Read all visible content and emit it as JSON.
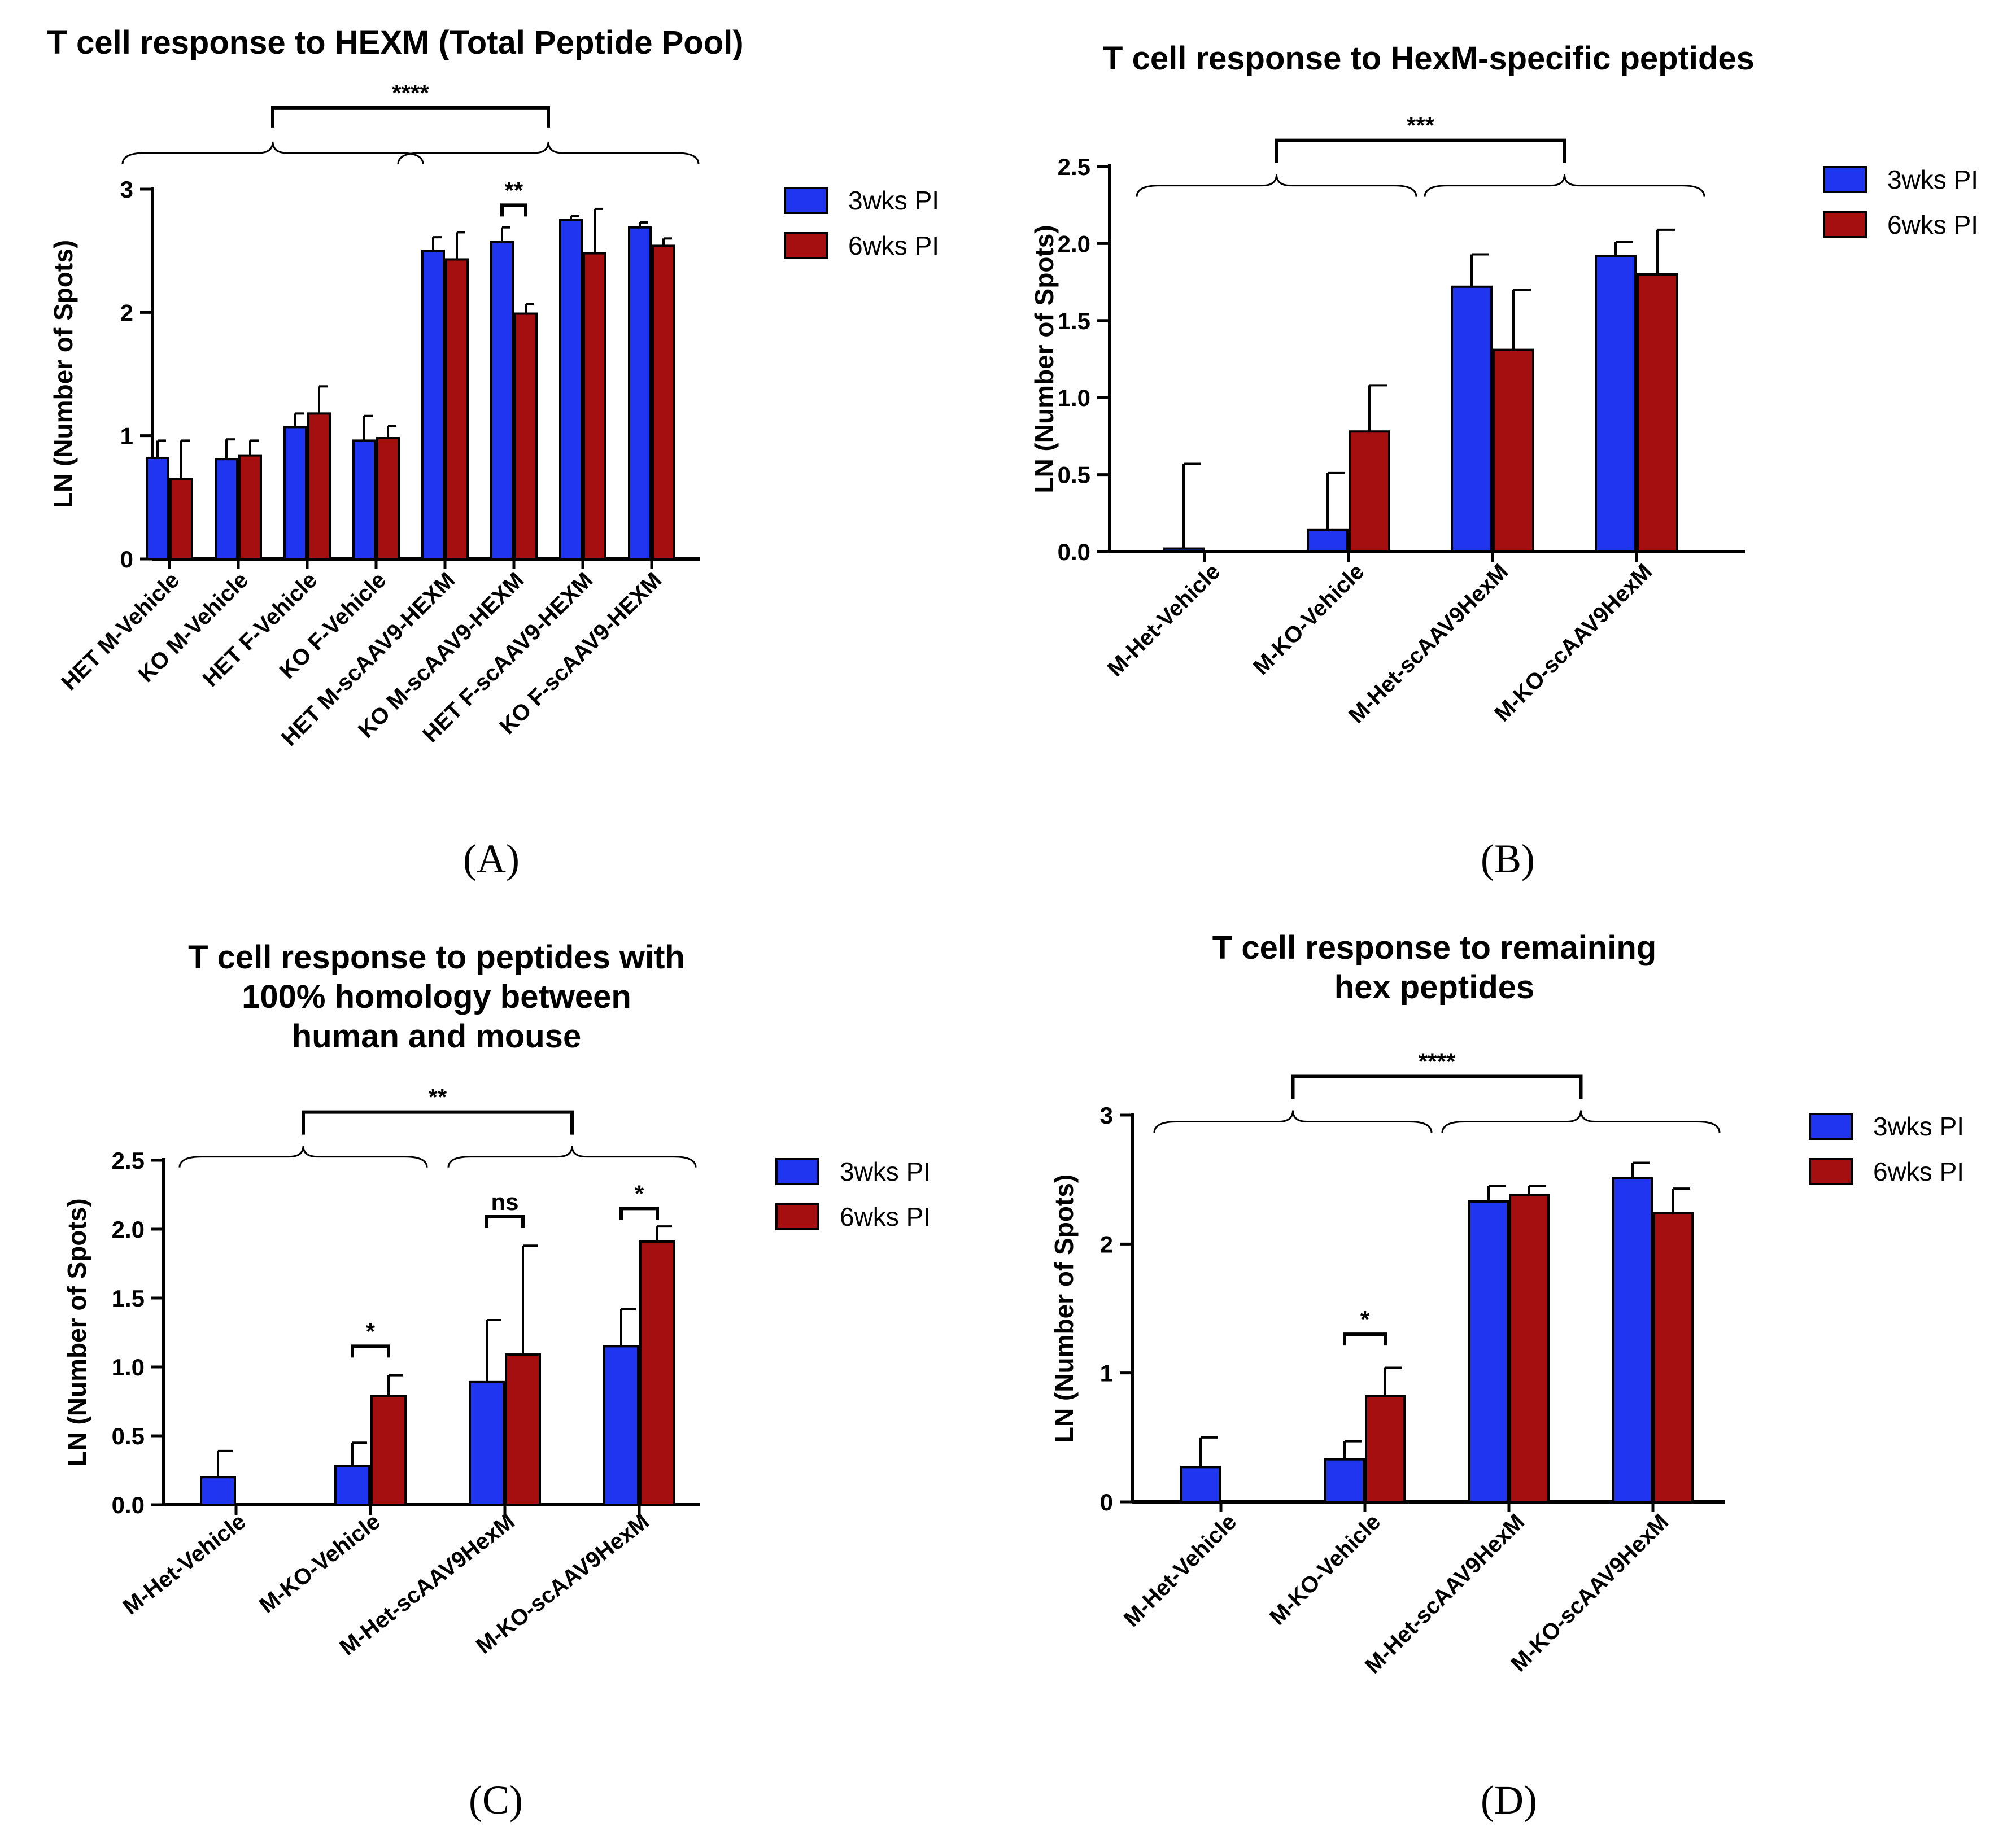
{
  "figure": {
    "colors": {
      "series_3wks": "#1f35f0",
      "series_6wks": "#a50f0f",
      "axis": "#000000"
    }
  },
  "chart_data": [
    {
      "id": "A",
      "panel_label": "(A)",
      "type": "bar",
      "title": [
        "T cell response to HEXM (Total Peptide Pool)"
      ],
      "ylabel": "LN (Number of Spots)",
      "xlabel": "",
      "ylim": [
        0,
        3
      ],
      "yticks": [
        0,
        1,
        2,
        3
      ],
      "ytick_labels": [
        "0",
        "1",
        "2",
        "3"
      ],
      "categories": [
        "HET M-Vehicle",
        "KO M-Vehicle",
        "HET F-Vehicle",
        "KO F-Vehicle",
        "HET M-scAAV9-HEXM",
        "KO M-scAAV9-HEXM",
        "HET F-scAAV9-HEXM",
        "KO F-scAAV9-HEXM"
      ],
      "series": [
        {
          "name": "3wks PI",
          "values": [
            0.82,
            0.81,
            1.07,
            0.96,
            2.5,
            2.57,
            2.75,
            2.69
          ],
          "errors": [
            0.14,
            0.16,
            0.11,
            0.2,
            0.11,
            0.12,
            0.03,
            0.04
          ]
        },
        {
          "name": "6wks PI",
          "values": [
            0.65,
            0.84,
            1.18,
            0.98,
            2.43,
            1.99,
            2.48,
            2.54
          ],
          "errors": [
            0.31,
            0.12,
            0.22,
            0.1,
            0.22,
            0.08,
            0.36,
            0.06
          ]
        }
      ],
      "legend": [
        "3wks PI",
        "6wks PI"
      ],
      "groups": [
        [
          0,
          3
        ],
        [
          4,
          7
        ]
      ],
      "annotations": [
        {
          "type": "between_groups",
          "label": "****",
          "level": 3.66
        },
        {
          "type": "pair",
          "label": "**",
          "category": 5,
          "level": 2.87
        }
      ]
    },
    {
      "id": "B",
      "panel_label": "(B)",
      "type": "bar",
      "title": [
        "T cell response to HexM-specific peptides"
      ],
      "ylabel": "LN (Number of Spots)",
      "xlabel": "",
      "ylim": [
        0,
        2.5
      ],
      "yticks": [
        0,
        0.5,
        1,
        1.5,
        2,
        2.5
      ],
      "ytick_labels": [
        "0.0",
        "0.5",
        "1.0",
        "1.5",
        "2.0",
        "2.5"
      ],
      "categories": [
        "M-Het-Vehicle",
        "M-KO-Vehicle",
        "M-Het-scAAV9HexM",
        "M-KO-scAAV9HexM"
      ],
      "series": [
        {
          "name": "3wks PI",
          "values": [
            0.02,
            0.14,
            1.72,
            1.92
          ],
          "errors": [
            0.55,
            0.37,
            0.21,
            0.09
          ]
        },
        {
          "name": "6wks PI",
          "values": [
            0.0,
            0.78,
            1.31,
            1.8
          ],
          "errors": [
            0,
            0.3,
            0.39,
            0.29
          ]
        }
      ],
      "legend": [
        "3wks PI",
        "6wks PI"
      ],
      "groups": [
        [
          0,
          1
        ],
        [
          2,
          3
        ]
      ],
      "annotations": [
        {
          "type": "between_groups",
          "label": "***",
          "level": 2.67
        }
      ]
    },
    {
      "id": "C",
      "panel_label": "(C)",
      "type": "bar",
      "title": [
        "T cell response to peptides with",
        "100% homology between",
        "human and mouse"
      ],
      "ylabel": "LN (Number of Spots)",
      "xlabel": "",
      "ylim": [
        0,
        2.5
      ],
      "yticks": [
        0,
        0.5,
        1,
        1.5,
        2,
        2.5
      ],
      "ytick_labels": [
        "0.0",
        "0.5",
        "1.0",
        "1.5",
        "2.0",
        "2.5"
      ],
      "categories": [
        "M-Het-Vehicle",
        "M-KO-Vehicle",
        "M-Het-scAAV9HexM",
        "M-KO-scAAV9HexM"
      ],
      "series": [
        {
          "name": "3wks PI",
          "values": [
            0.2,
            0.28,
            0.89,
            1.15
          ],
          "errors": [
            0.19,
            0.17,
            0.45,
            0.27
          ]
        },
        {
          "name": "6wks PI",
          "values": [
            0.0,
            0.79,
            1.09,
            1.91
          ],
          "errors": [
            0,
            0.15,
            0.79,
            0.11
          ]
        }
      ],
      "legend": [
        "3wks PI",
        "6wks PI"
      ],
      "groups": [
        [
          0,
          1
        ],
        [
          2,
          3
        ]
      ],
      "annotations": [
        {
          "type": "between_groups",
          "label": "**",
          "level": 2.85
        },
        {
          "type": "pair",
          "label": "*",
          "category": 1,
          "level": 1.15
        },
        {
          "type": "pair",
          "label": "ns",
          "category": 2,
          "level": 2.09
        },
        {
          "type": "pair",
          "label": "*",
          "category": 3,
          "level": 2.15
        }
      ]
    },
    {
      "id": "D",
      "panel_label": "(D)",
      "type": "bar",
      "title": [
        "T cell response to remaining",
        "hex peptides"
      ],
      "ylabel": "LN (Number of Spots)",
      "xlabel": "",
      "ylim": [
        0,
        3
      ],
      "yticks": [
        0,
        1,
        2,
        3
      ],
      "ytick_labels": [
        "0",
        "1",
        "2",
        "3"
      ],
      "categories": [
        "M-Het-Vehicle",
        "M-KO-Vehicle",
        "M-Het-scAAV9HexM",
        "M-KO-scAAV9HexM"
      ],
      "series": [
        {
          "name": "3wks PI",
          "values": [
            0.27,
            0.33,
            2.33,
            2.51
          ],
          "errors": [
            0.23,
            0.14,
            0.12,
            0.12
          ]
        },
        {
          "name": "6wks PI",
          "values": [
            0.0,
            0.82,
            2.38,
            2.24
          ],
          "errors": [
            0,
            0.22,
            0.07,
            0.19
          ]
        }
      ],
      "legend": [
        "3wks PI",
        "6wks PI"
      ],
      "groups": [
        [
          0,
          1
        ],
        [
          2,
          3
        ]
      ],
      "annotations": [
        {
          "type": "between_groups",
          "label": "****",
          "level": 3.3
        },
        {
          "type": "pair",
          "label": "*",
          "category": 1,
          "level": 1.3
        }
      ]
    }
  ]
}
